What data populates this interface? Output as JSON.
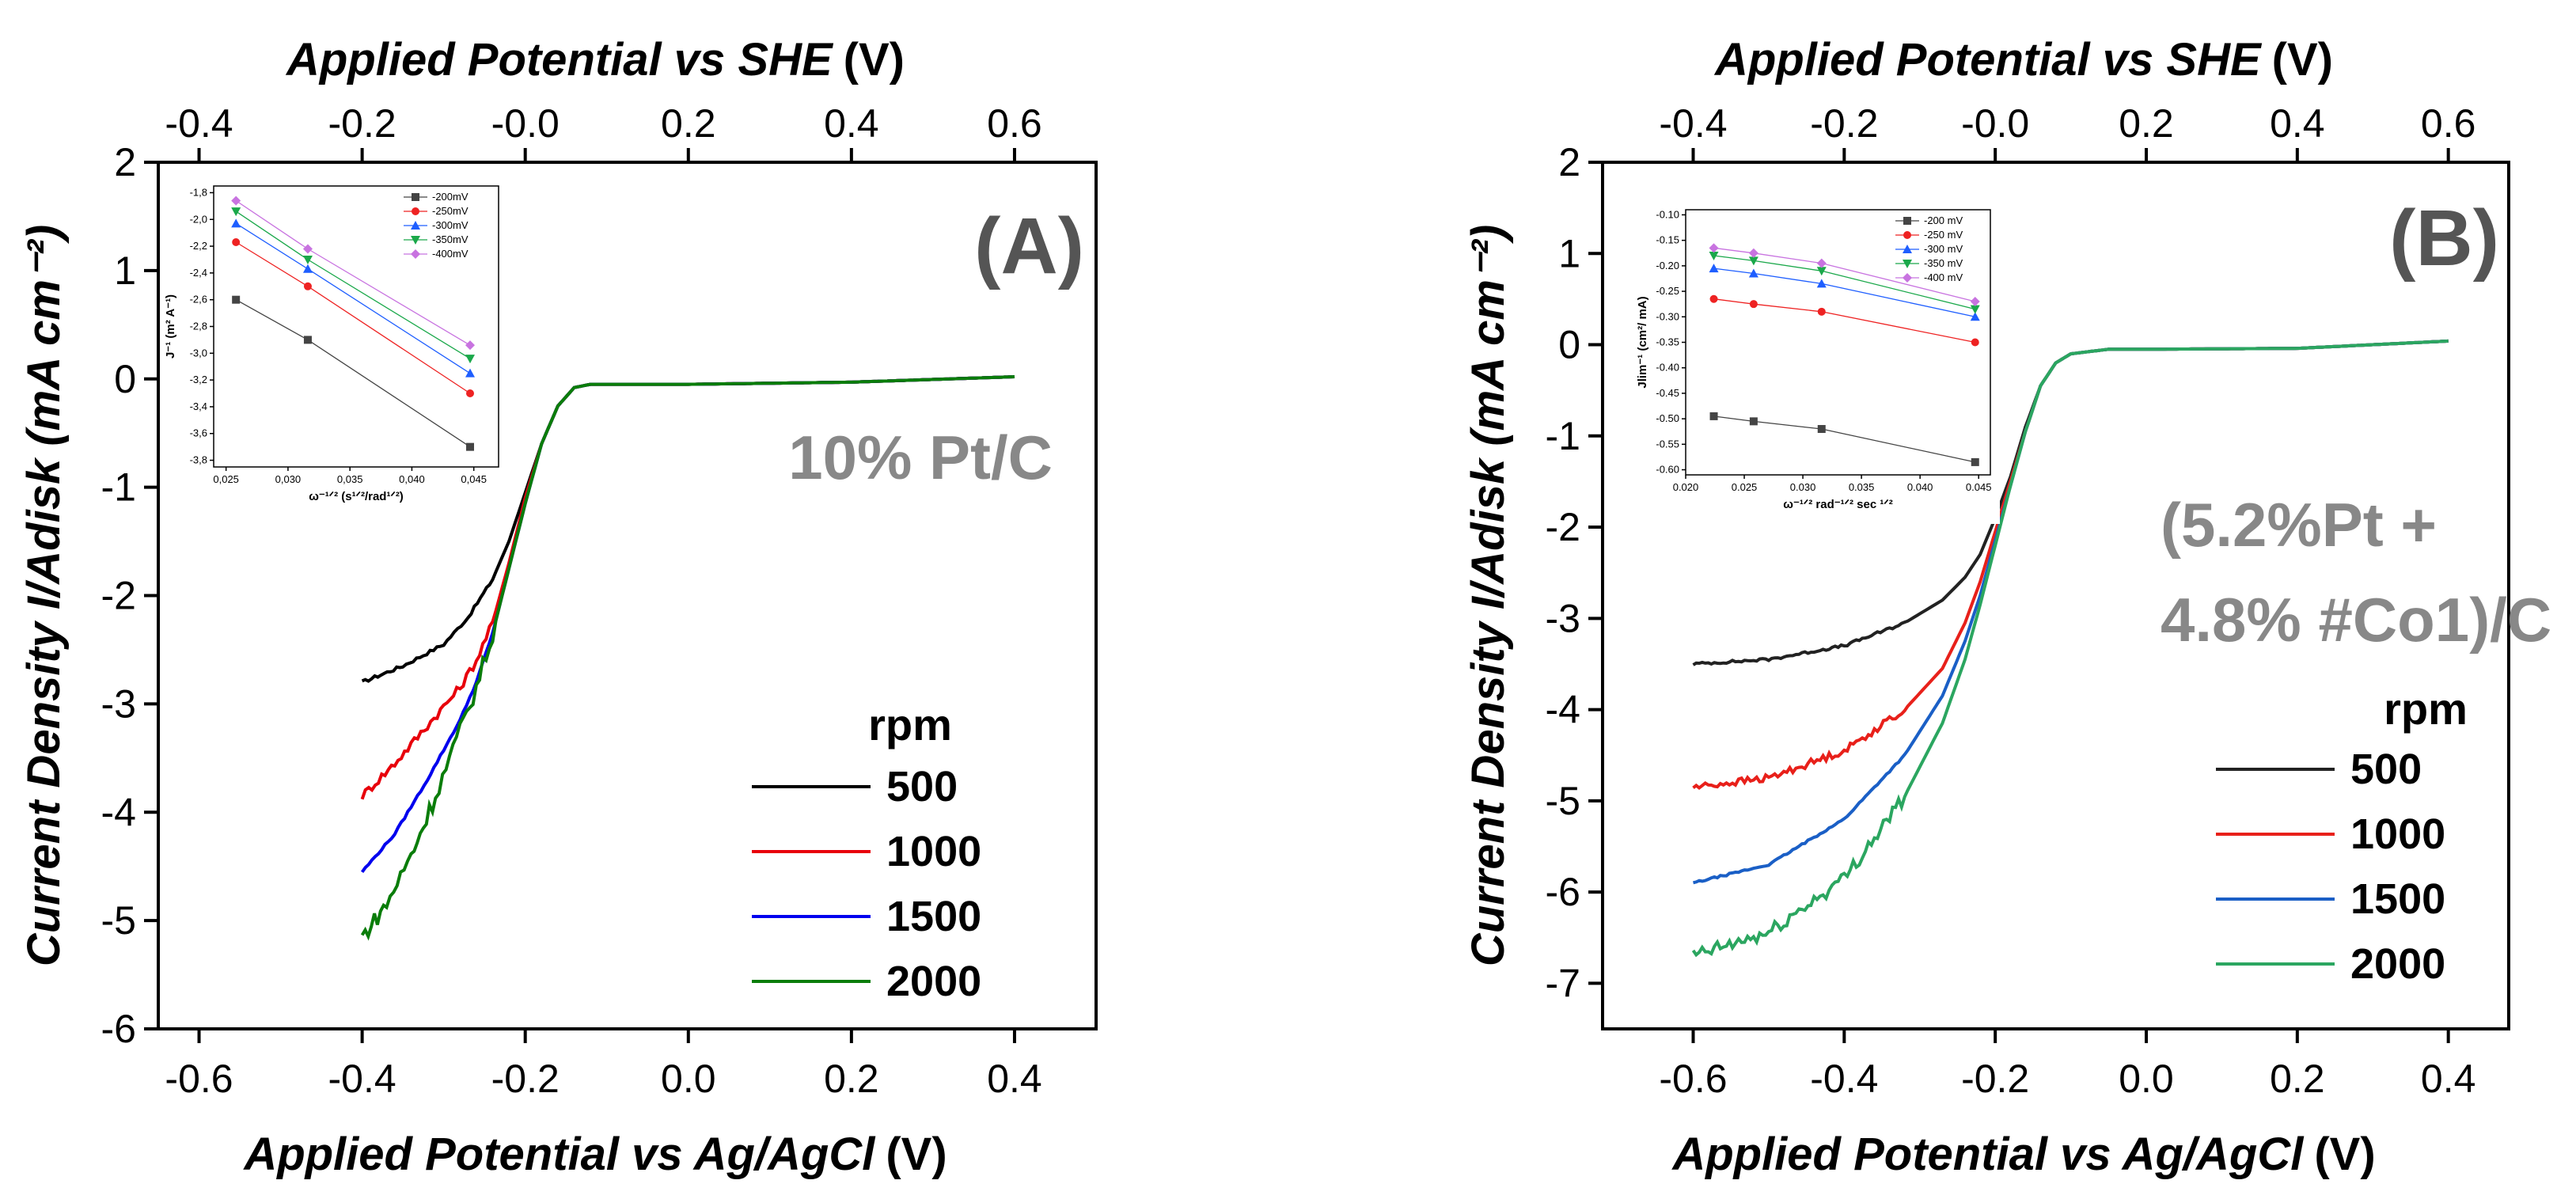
{
  "chart_data": [
    {
      "type": "line",
      "panel_label": "(A)",
      "sample_label": [
        "10% Pt/C"
      ],
      "xlabel": "Applied Potential vs Ag/AgCl",
      "xlabel_unit": "(V)",
      "top_xlabel": "Applied Potential vs SHE",
      "top_xlabel_unit": "(V)",
      "ylabel": "Current Density I/Adisk (mA cm⁻²)",
      "xlim": [
        -0.65,
        0.5
      ],
      "ylim": [
        -6,
        2
      ],
      "xticks": [
        -0.6,
        -0.4,
        -0.2,
        0.0,
        0.2,
        0.4
      ],
      "xtick_labels": [
        "-0.6",
        "-0.4",
        "-0.2",
        "0.0",
        "0.2",
        "0.4"
      ],
      "yticks": [
        2,
        1,
        0,
        -1,
        -2,
        -3,
        -4,
        -5,
        -6
      ],
      "ytick_labels": [
        "2",
        "1",
        "0",
        "-1",
        "-2",
        "-3",
        "-4",
        "-5",
        "-6"
      ],
      "top_xlim": [
        -0.45,
        0.7
      ],
      "top_xticks": [
        -0.4,
        -0.2,
        0.0,
        0.2,
        0.4,
        0.6
      ],
      "top_xtick_labels": [
        "-0.4",
        "-0.2",
        "-0.0",
        "0.2",
        "0.4",
        "0.6"
      ],
      "legend_title": "rpm",
      "series": [
        {
          "name": "500",
          "color": "#000000",
          "x": [
            -0.4,
            -0.35,
            -0.3,
            -0.27,
            -0.24,
            -0.22,
            -0.2,
            -0.18,
            -0.16,
            -0.14,
            -0.12,
            -0.1,
            0.0,
            0.2,
            0.4
          ],
          "y": [
            -2.8,
            -2.65,
            -2.45,
            -2.2,
            -1.85,
            -1.5,
            -1.05,
            -0.6,
            -0.25,
            -0.08,
            -0.05,
            -0.05,
            -0.05,
            -0.03,
            0.02
          ]
        },
        {
          "name": "1000",
          "color": "#e8000b",
          "x": [
            -0.4,
            -0.36,
            -0.32,
            -0.28,
            -0.26,
            -0.24,
            -0.22,
            -0.2,
            -0.18,
            -0.16,
            -0.14,
            -0.12,
            -0.1,
            0.0,
            0.2,
            0.4
          ],
          "y": [
            -3.85,
            -3.55,
            -3.2,
            -2.85,
            -2.6,
            -2.25,
            -1.7,
            -1.1,
            -0.6,
            -0.25,
            -0.08,
            -0.05,
            -0.05,
            -0.05,
            -0.03,
            0.02
          ]
        },
        {
          "name": "1500",
          "color": "#0000ee",
          "x": [
            -0.4,
            -0.36,
            -0.32,
            -0.28,
            -0.26,
            -0.24,
            -0.22,
            -0.2,
            -0.18,
            -0.16,
            -0.14,
            -0.12,
            -0.1,
            0.0,
            0.2,
            0.4
          ],
          "y": [
            -4.55,
            -4.2,
            -3.7,
            -3.15,
            -2.8,
            -2.35,
            -1.75,
            -1.15,
            -0.6,
            -0.25,
            -0.08,
            -0.05,
            -0.05,
            -0.05,
            -0.03,
            0.02
          ]
        },
        {
          "name": "2000",
          "color": "#0a7d0a",
          "x": [
            -0.4,
            -0.37,
            -0.34,
            -0.31,
            -0.28,
            -0.26,
            -0.24,
            -0.22,
            -0.2,
            -0.18,
            -0.16,
            -0.14,
            -0.12,
            -0.1,
            0.0,
            0.2,
            0.4
          ],
          "y": [
            -5.15,
            -4.85,
            -4.4,
            -3.85,
            -3.25,
            -2.85,
            -2.35,
            -1.75,
            -1.15,
            -0.6,
            -0.25,
            -0.08,
            -0.05,
            -0.05,
            -0.05,
            -0.03,
            0.02
          ]
        }
      ],
      "inset": {
        "xlabel": "ω⁻¹ᐟ² (s¹ᐟ²/rad¹ᐟ²)",
        "ylabel": "J⁻¹ (m² A⁻¹)",
        "xlim": [
          0.024,
          0.047
        ],
        "ylim": [
          -3.85,
          -1.75
        ],
        "xticks": [
          0.025,
          0.03,
          0.035,
          0.04,
          0.045
        ],
        "xtick_labels": [
          "0,025",
          "0,030",
          "0,035",
          "0,040",
          "0,045"
        ],
        "yticks": [
          -1.8,
          -2.0,
          -2.2,
          -2.4,
          -2.6,
          -2.8,
          -3.0,
          -3.2,
          -3.4,
          -3.6,
          -3.8
        ],
        "ytick_labels": [
          "-1,8",
          "-2,0",
          "-2,2",
          "-2,4",
          "-2,6",
          "-2,8",
          "-3,0",
          "-3,2",
          "-3,4",
          "-3,6",
          "-3,8"
        ],
        "series": [
          {
            "name": "-200mV",
            "color": "#444444",
            "marker": "square",
            "x": [
              0.0258,
              0.0316,
              0.0447
            ],
            "y": [
              -2.6,
              -2.9,
              -3.7
            ]
          },
          {
            "name": "-250mV",
            "color": "#ee2222",
            "marker": "circle",
            "x": [
              0.0258,
              0.0316,
              0.0447
            ],
            "y": [
              -2.17,
              -2.5,
              -3.3
            ]
          },
          {
            "name": "-300mV",
            "color": "#1e5eff",
            "marker": "triangle-up",
            "x": [
              0.0258,
              0.0316,
              0.0447
            ],
            "y": [
              -2.03,
              -2.37,
              -3.15
            ]
          },
          {
            "name": "-350mV",
            "color": "#1aa84a",
            "marker": "triangle-down",
            "x": [
              0.0258,
              0.0316,
              0.0447
            ],
            "y": [
              -1.94,
              -2.3,
              -3.04
            ]
          },
          {
            "name": "-400mV",
            "color": "#c873e0",
            "marker": "diamond",
            "x": [
              0.0258,
              0.0316,
              0.0447
            ],
            "y": [
              -1.86,
              -2.22,
              -2.94
            ]
          }
        ]
      }
    },
    {
      "type": "line",
      "panel_label": "(B)",
      "sample_label": [
        "(5.2%Pt +",
        "4.8% #Co1)/C"
      ],
      "xlabel": "Applied Potential vs Ag/AgCl",
      "xlabel_unit": "(V)",
      "top_xlabel": "Applied Potential vs SHE",
      "top_xlabel_unit": "(V)",
      "ylabel": "Current Density I/Adisk (mA cm⁻²)",
      "xlim": [
        -0.72,
        0.48
      ],
      "ylim": [
        -7.5,
        2
      ],
      "xticks": [
        -0.6,
        -0.4,
        -0.2,
        0.0,
        0.2,
        0.4
      ],
      "xtick_labels": [
        "-0.6",
        "-0.4",
        "-0.2",
        "0.0",
        "0.2",
        "0.4"
      ],
      "yticks": [
        2,
        1,
        0,
        -1,
        -2,
        -3,
        -4,
        -5,
        -6,
        -7
      ],
      "ytick_labels": [
        "2",
        "1",
        "0",
        "-1",
        "-2",
        "-3",
        "-4",
        "-5",
        "-6",
        "-7"
      ],
      "top_xlim": [
        -0.52,
        0.68
      ],
      "top_xticks": [
        -0.4,
        -0.2,
        0.0,
        0.2,
        0.4,
        0.6
      ],
      "top_xtick_labels": [
        "-0.4",
        "-0.2",
        "-0.0",
        "0.2",
        "0.4",
        "0.6"
      ],
      "legend_title": "rpm",
      "series": [
        {
          "name": "500",
          "color": "#222222",
          "x": [
            -0.6,
            -0.5,
            -0.4,
            -0.32,
            -0.27,
            -0.24,
            -0.22,
            -0.2,
            -0.18,
            -0.16,
            -0.14,
            -0.12,
            -0.1,
            -0.05,
            0.0,
            0.2,
            0.4
          ],
          "y": [
            -3.5,
            -3.45,
            -3.3,
            -3.05,
            -2.8,
            -2.55,
            -2.3,
            -1.9,
            -1.45,
            -0.9,
            -0.45,
            -0.2,
            -0.1,
            -0.05,
            -0.05,
            -0.04,
            0.04
          ]
        },
        {
          "name": "1000",
          "color": "#e8201a",
          "x": [
            -0.6,
            -0.5,
            -0.4,
            -0.32,
            -0.27,
            -0.24,
            -0.22,
            -0.2,
            -0.18,
            -0.16,
            -0.14,
            -0.12,
            -0.1,
            -0.05,
            0.0,
            0.2,
            0.4
          ],
          "y": [
            -4.85,
            -4.75,
            -4.45,
            -4.0,
            -3.55,
            -3.05,
            -2.6,
            -2.05,
            -1.5,
            -0.95,
            -0.45,
            -0.2,
            -0.1,
            -0.05,
            -0.05,
            -0.04,
            0.04
          ]
        },
        {
          "name": "1500",
          "color": "#1a5fc6",
          "x": [
            -0.6,
            -0.5,
            -0.4,
            -0.32,
            -0.27,
            -0.24,
            -0.22,
            -0.2,
            -0.18,
            -0.16,
            -0.14,
            -0.12,
            -0.1,
            -0.05,
            0.0,
            0.2,
            0.4
          ],
          "y": [
            -5.9,
            -5.7,
            -5.2,
            -4.5,
            -3.85,
            -3.25,
            -2.75,
            -2.15,
            -1.55,
            -0.95,
            -0.45,
            -0.2,
            -0.1,
            -0.05,
            -0.05,
            -0.04,
            0.04
          ]
        },
        {
          "name": "2000",
          "color": "#2ba660",
          "x": [
            -0.6,
            -0.5,
            -0.4,
            -0.32,
            -0.27,
            -0.24,
            -0.22,
            -0.2,
            -0.18,
            -0.16,
            -0.14,
            -0.12,
            -0.1,
            -0.05,
            0.0,
            0.2,
            0.4
          ],
          "y": [
            -6.7,
            -6.45,
            -5.85,
            -4.95,
            -4.15,
            -3.45,
            -2.85,
            -2.2,
            -1.55,
            -0.95,
            -0.45,
            -0.2,
            -0.1,
            -0.05,
            -0.05,
            -0.04,
            0.04
          ]
        }
      ],
      "inset": {
        "xlabel": "ω⁻¹ᐟ² rad⁻¹ᐟ² sec ¹ᐟ²",
        "ylabel": "Jlim⁻¹ (cm²/ mA)",
        "xlim": [
          0.02,
          0.046
        ],
        "ylim": [
          -0.61,
          -0.09
        ],
        "xticks": [
          0.02,
          0.025,
          0.03,
          0.035,
          0.04,
          0.045
        ],
        "xtick_labels": [
          "0.020",
          "0.025",
          "0.030",
          "0.035",
          "0.040",
          "0.045"
        ],
        "yticks": [
          -0.1,
          -0.15,
          -0.2,
          -0.25,
          -0.3,
          -0.35,
          -0.4,
          -0.45,
          -0.5,
          -0.55,
          -0.6
        ],
        "ytick_labels": [
          "-0.10",
          "-0.15",
          "-0.20",
          "-0.25",
          "-0.30",
          "-0.35",
          "-0.40",
          "-0.45",
          "-0.50",
          "-0.55",
          "-0.60"
        ],
        "series": [
          {
            "name": "-200 mV",
            "color": "#444444",
            "marker": "square",
            "x": [
              0.0224,
              0.0258,
              0.0316,
              0.0447
            ],
            "y": [
              -0.495,
              -0.505,
              -0.52,
              -0.585
            ]
          },
          {
            "name": "-250 mV",
            "color": "#ee2222",
            "marker": "circle",
            "x": [
              0.0224,
              0.0258,
              0.0316,
              0.0447
            ],
            "y": [
              -0.265,
              -0.275,
              -0.29,
              -0.35
            ]
          },
          {
            "name": "-300 mV",
            "color": "#1e5eff",
            "marker": "triangle-up",
            "x": [
              0.0224,
              0.0258,
              0.0316,
              0.0447
            ],
            "y": [
              -0.205,
              -0.215,
              -0.235,
              -0.3
            ]
          },
          {
            "name": "-350 mV",
            "color": "#1aa84a",
            "marker": "triangle-down",
            "x": [
              0.0224,
              0.0258,
              0.0316,
              0.0447
            ],
            "y": [
              -0.18,
              -0.19,
              -0.21,
              -0.285
            ]
          },
          {
            "name": "-400 mV",
            "color": "#c873e0",
            "marker": "diamond",
            "x": [
              0.0224,
              0.0258,
              0.0316,
              0.0447
            ],
            "y": [
              -0.165,
              -0.175,
              -0.195,
              -0.27
            ]
          }
        ]
      }
    }
  ]
}
